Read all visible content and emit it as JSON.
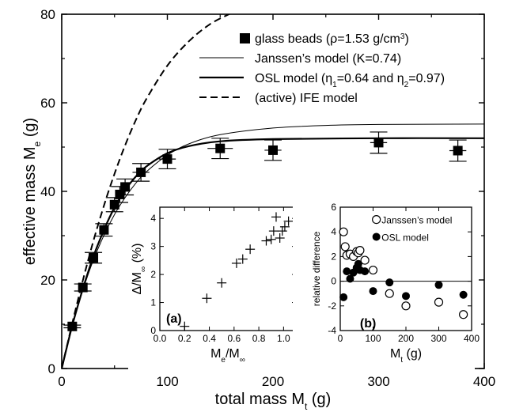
{
  "chart_data": [
    {
      "type": "scatter",
      "xlabel": "total mass M",
      "xlabel_sub": "t",
      "xlabel_unit": " (g)",
      "ylabel": "effective mass M",
      "ylabel_sub": "e",
      "ylabel_unit": " (g)",
      "xlim": [
        0,
        400
      ],
      "ylim": [
        0,
        80
      ],
      "xticks": [
        0,
        100,
        200,
        300,
        400
      ],
      "yticks": [
        0,
        20,
        40,
        60,
        80
      ],
      "legend_position": "top-right",
      "legend": [
        {
          "key": "glass_beads",
          "parts": [
            "glass beads (ρ=1.53 g/cm",
            "3",
            ")"
          ]
        },
        {
          "key": "janssen",
          "parts": [
            "Janssen’s model (K=0.74)"
          ]
        },
        {
          "key": "osl",
          "parts": [
            "OSL model (η",
            "1",
            "=0.64 and η",
            "2",
            "=0.97)"
          ]
        },
        {
          "key": "ife",
          "parts": [
            "(active) IFE model"
          ]
        }
      ],
      "series": [
        {
          "name": "glass beads (ρ=1.53 g/cm3)",
          "marker": "filled-square",
          "points": [
            {
              "x": 10,
              "y": 9.5,
              "xerr": 3,
              "yerr": 0.3
            },
            {
              "x": 20,
              "y": 18.3,
              "xerr": 3,
              "yerr": 0.8
            },
            {
              "x": 30,
              "y": 25,
              "xerr": 3,
              "yerr": 1.2
            },
            {
              "x": 40,
              "y": 31.3,
              "xerr": 3,
              "yerr": 1.4
            },
            {
              "x": 50,
              "y": 37,
              "xerr": 4,
              "yerr": 1.6
            },
            {
              "x": 55,
              "y": 39.3,
              "xerr": 4,
              "yerr": 1.8
            },
            {
              "x": 60,
              "y": 41,
              "xerr": 4,
              "yerr": 1.8
            },
            {
              "x": 75,
              "y": 44.3,
              "xerr": 8,
              "yerr": 2
            },
            {
              "x": 100,
              "y": 47.3,
              "xerr": 8,
              "yerr": 2.2
            },
            {
              "x": 150,
              "y": 49.7,
              "xerr": 12,
              "yerr": 2.3
            },
            {
              "x": 200,
              "y": 49.3,
              "xerr": 8,
              "yerr": 2.3
            },
            {
              "x": 300,
              "y": 51,
              "xerr": 8,
              "yerr": 2.4
            },
            {
              "x": 375,
              "y": 49.2,
              "xerr": 8,
              "yerr": 2.4
            }
          ]
        },
        {
          "name": "Janssen’s model (K=0.74)",
          "style": "thin-solid",
          "points": [
            [
              0,
              0
            ],
            [
              10,
              9.6
            ],
            [
              20,
              17.7
            ],
            [
              30,
              24.5
            ],
            [
              40,
              30.1
            ],
            [
              50,
              34.8
            ],
            [
              60,
              38.6
            ],
            [
              70,
              41.8
            ],
            [
              80,
              44.4
            ],
            [
              100,
              48.2
            ],
            [
              120,
              50.7
            ],
            [
              150,
              52.8
            ],
            [
              200,
              54.3
            ],
            [
              250,
              54.9
            ],
            [
              300,
              55.1
            ],
            [
              400,
              55.2
            ]
          ]
        },
        {
          "name": "OSL model (η1=0.64 and η2=0.97)",
          "style": "thick-solid",
          "points": [
            [
              0,
              0
            ],
            [
              10,
              9.7
            ],
            [
              20,
              18
            ],
            [
              30,
              25.3
            ],
            [
              40,
              31.3
            ],
            [
              50,
              36.4
            ],
            [
              60,
              40.3
            ],
            [
              70,
              43.3
            ],
            [
              80,
              45.6
            ],
            [
              100,
              48.6
            ],
            [
              120,
              50.2
            ],
            [
              150,
              51.3
            ],
            [
              200,
              51.8
            ],
            [
              300,
              52
            ],
            [
              400,
              52
            ]
          ]
        },
        {
          "name": "(active) IFE model",
          "style": "dashed",
          "points": [
            [
              0,
              0
            ],
            [
              10,
              10.2
            ],
            [
              20,
              19.9
            ],
            [
              30,
              28.8
            ],
            [
              40,
              36.8
            ],
            [
              50,
              44
            ],
            [
              60,
              50.4
            ],
            [
              70,
              56
            ],
            [
              80,
              60.8
            ],
            [
              100,
              68.4
            ],
            [
              120,
              73.8
            ],
            [
              140,
              77.7
            ],
            [
              160,
              80.2
            ]
          ]
        }
      ]
    },
    {
      "type": "scatter",
      "panel_label": "(a)",
      "xlabel": "M",
      "xlabel_sub1": "e",
      "xlabel_mid": "/M",
      "xlabel_sub2": "∞",
      "ylabel": "Δ/M",
      "ylabel_sub": "∞",
      "ylabel_unit": " (%)",
      "xlim": [
        0,
        1.1
      ],
      "ylim": [
        0,
        4.4
      ],
      "xticks": [
        "0.0",
        "0.2",
        "0.4",
        "0.6",
        "0.8",
        "1.0"
      ],
      "xtick_values": [
        0,
        0.2,
        0.4,
        0.6,
        0.8,
        1.0
      ],
      "yticks": [
        0,
        1,
        2,
        3,
        4
      ],
      "series": [
        {
          "marker": "plus",
          "points": [
            [
              0.2,
              0.15
            ],
            [
              0.38,
              1.15
            ],
            [
              0.5,
              1.7
            ],
            [
              0.62,
              2.4
            ],
            [
              0.67,
              2.55
            ],
            [
              0.73,
              2.9
            ],
            [
              0.86,
              3.2
            ],
            [
              0.9,
              3.25
            ],
            [
              0.92,
              3.55
            ],
            [
              0.94,
              4.05
            ],
            [
              0.97,
              3.3
            ],
            [
              0.99,
              3.55
            ],
            [
              1.01,
              3.7
            ],
            [
              1.04,
              3.9
            ]
          ]
        }
      ]
    },
    {
      "type": "scatter",
      "panel_label": "(b)",
      "xlabel": "M",
      "xlabel_sub": "t",
      "xlabel_unit": " (g)",
      "ylabel": "relative difference",
      "xlim": [
        0,
        400
      ],
      "ylim": [
        -4,
        6
      ],
      "xticks": [
        0,
        100,
        200,
        300,
        400
      ],
      "yticks": [
        -4,
        -2,
        0,
        2,
        4,
        6
      ],
      "zero_line": true,
      "legend": [
        {
          "key": "janssen",
          "parts": [
            "Janssen’s model"
          ]
        },
        {
          "key": "osl",
          "parts": [
            "OSL model"
          ]
        }
      ],
      "series": [
        {
          "name": "Janssen’s model",
          "marker": "open-circle",
          "points": [
            [
              10,
              4
            ],
            [
              15,
              2.8
            ],
            [
              20,
              2.1
            ],
            [
              30,
              2.2
            ],
            [
              40,
              2
            ],
            [
              50,
              2.4
            ],
            [
              55,
              2.3
            ],
            [
              60,
              2.5
            ],
            [
              75,
              1.7
            ],
            [
              100,
              0.9
            ],
            [
              150,
              -1
            ],
            [
              200,
              -2
            ],
            [
              300,
              -1.7
            ],
            [
              375,
              -2.7
            ]
          ]
        },
        {
          "name": "OSL model",
          "marker": "filled-circle",
          "points": [
            [
              10,
              -1.3
            ],
            [
              20,
              0.8
            ],
            [
              30,
              0.2
            ],
            [
              40,
              0.7
            ],
            [
              50,
              1.1
            ],
            [
              55,
              1.4
            ],
            [
              60,
              0.9
            ],
            [
              75,
              0.8
            ],
            [
              100,
              -0.8
            ],
            [
              150,
              -0.1
            ],
            [
              200,
              -1.2
            ],
            [
              300,
              -0.3
            ],
            [
              375,
              -1.1
            ]
          ]
        }
      ]
    }
  ]
}
